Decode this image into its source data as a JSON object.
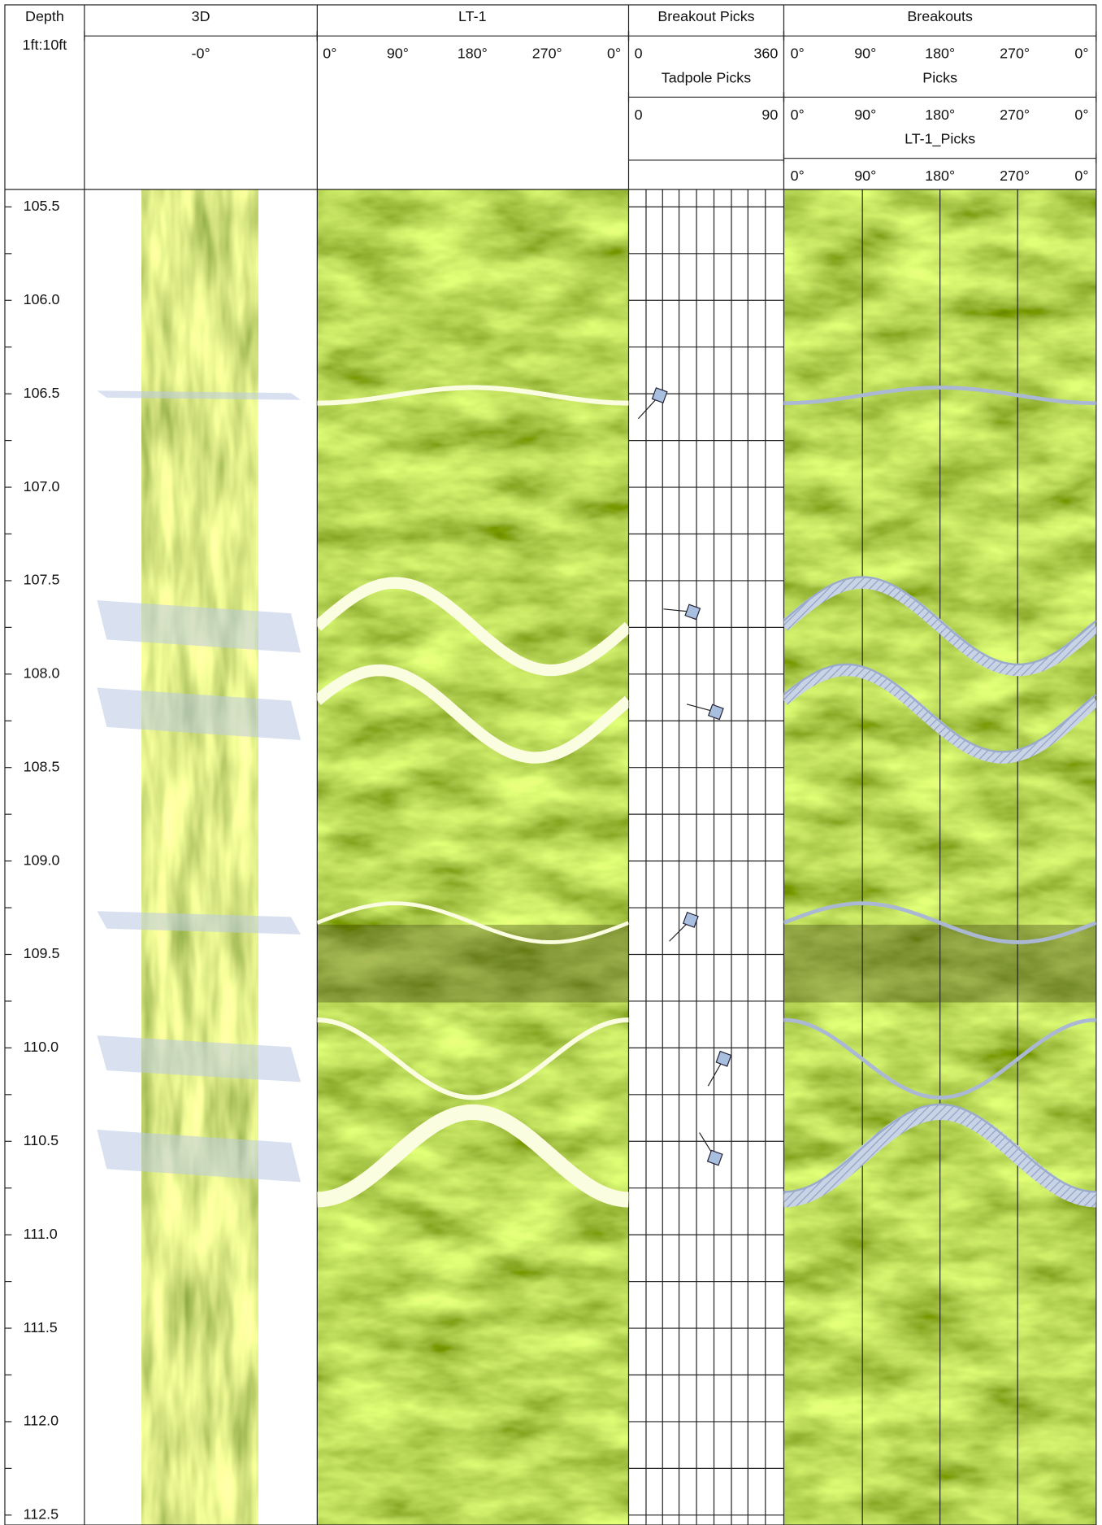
{
  "header": {
    "tracks": [
      {
        "title": "Depth",
        "scale": "1ft:10ft"
      },
      {
        "title": "3D",
        "labels": [
          "-0°"
        ]
      },
      {
        "title": "LT-1",
        "labels": [
          "0°",
          "90°",
          "180°",
          "270°",
          "0°"
        ]
      },
      {
        "title": "Breakout Picks",
        "labels": [
          "0",
          "360"
        ],
        "subtitle": "Tadpole Picks",
        "sublabels": [
          "0",
          "90"
        ]
      },
      {
        "title": "Breakouts",
        "labels": [
          "0°",
          "90°",
          "180°",
          "270°",
          "0°"
        ],
        "subtitle": "Picks",
        "sublabels": [
          "0°",
          "90°",
          "180°",
          "270°",
          "0°"
        ],
        "subtitle2": "LT-1_Picks",
        "sublabels2": [
          "0°",
          "90°",
          "180°",
          "270°",
          "0°"
        ]
      }
    ]
  },
  "depth_labels": [
    "105.5",
    "106.0",
    "106.5",
    "107.0",
    "107.5",
    "108.0",
    "108.5",
    "109.0",
    "109.5",
    "110.0",
    "110.5",
    "111.0",
    "111.5",
    "112.0",
    "112.5"
  ]
}
